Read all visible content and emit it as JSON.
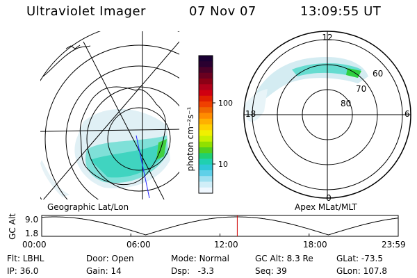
{
  "header": {
    "instrument": "Ultraviolet Imager",
    "date": "07 Nov 07",
    "time": "13:09:55 UT"
  },
  "colorbar": {
    "unit_label": "photon cm⁻²s⁻¹",
    "ticks": [
      "100",
      "10"
    ],
    "colors": [
      "#1a0033",
      "#2a0030",
      "#4a0028",
      "#6a0020",
      "#8b0015",
      "#b0001a",
      "#d00010",
      "#e02000",
      "#f04000",
      "#f06800",
      "#ff8c00",
      "#ffb000",
      "#ffd000",
      "#f0f000",
      "#c8f000",
      "#90e000",
      "#50d020",
      "#20d070",
      "#20d0b0",
      "#30c8d8",
      "#60d0e8",
      "#a0e0f0",
      "#d0eef8",
      "#f0f8ff"
    ]
  },
  "left_panel": {
    "label": "Geographic Lat/Lon"
  },
  "right_panel": {
    "label": "Apex  MLat/MLT",
    "mlt_labels": {
      "top": "12",
      "left": "18",
      "right": "6",
      "bottom": "0"
    },
    "lat_labels": [
      "60",
      "70",
      "80"
    ]
  },
  "timeline": {
    "axis_title": "GC Alt",
    "y_ticks": [
      "9.0",
      "1.8"
    ],
    "x_ticks": [
      "00:00",
      "06:00",
      "12:00",
      "18:00",
      "23:59"
    ],
    "current_time_hours": 13.165
  },
  "status": {
    "row1": [
      {
        "label": "Flt:",
        "value": "LBHL"
      },
      {
        "label": "Door:",
        "value": "Open"
      },
      {
        "label": "Mode:",
        "value": "Normal"
      },
      {
        "label": "GC Alt:",
        "value": "8.3 Re"
      },
      {
        "label": "GLat:",
        "value": "-73.5"
      }
    ],
    "row2": [
      {
        "label": "IP:",
        "value": "36.0"
      },
      {
        "label": "Gain:",
        "value": "14"
      },
      {
        "label": "Dsp:",
        "value": "-3.3"
      },
      {
        "label": "Seq:",
        "value": "39"
      },
      {
        "label": "GLon:",
        "value": "107.8"
      }
    ]
  }
}
